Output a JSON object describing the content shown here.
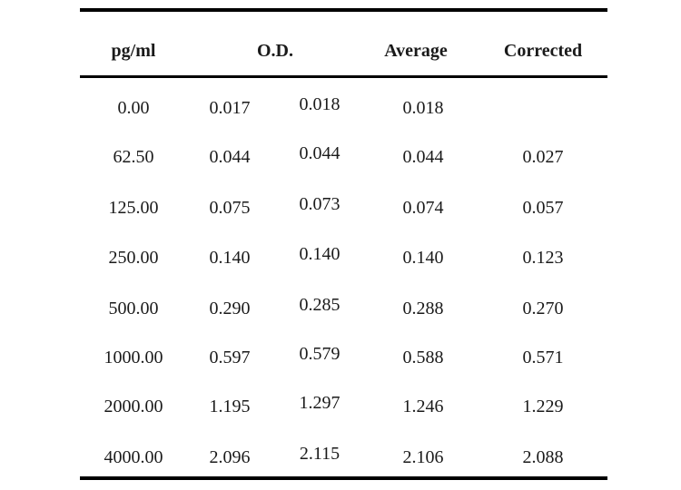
{
  "table": {
    "headers": {
      "concentration": "pg/ml",
      "od": "O.D.",
      "average": "Average",
      "corrected": "Corrected"
    },
    "rows": [
      {
        "conc": "0.00",
        "od1": "0.017",
        "od2": "0.018",
        "avg": "0.018",
        "corr": ""
      },
      {
        "conc": "62.50",
        "od1": "0.044",
        "od2": "0.044",
        "avg": "0.044",
        "corr": "0.027"
      },
      {
        "conc": "125.00",
        "od1": "0.075",
        "od2": "0.073",
        "avg": "0.074",
        "corr": "0.057"
      },
      {
        "conc": "250.00",
        "od1": "0.140",
        "od2": "0.140",
        "avg": "0.140",
        "corr": "0.123"
      },
      {
        "conc": "500.00",
        "od1": "0.290",
        "od2": "0.285",
        "avg": "0.288",
        "corr": "0.270"
      },
      {
        "conc": "1000.00",
        "od1": "0.597",
        "od2": "0.579",
        "avg": "0.588",
        "corr": "0.571"
      },
      {
        "conc": "2000.00",
        "od1": "1.195",
        "od2": "1.297",
        "avg": "1.246",
        "corr": "1.229"
      },
      {
        "conc": "4000.00",
        "od1": "2.096",
        "od2": "2.115",
        "avg": "2.106",
        "corr": "2.088"
      }
    ]
  }
}
